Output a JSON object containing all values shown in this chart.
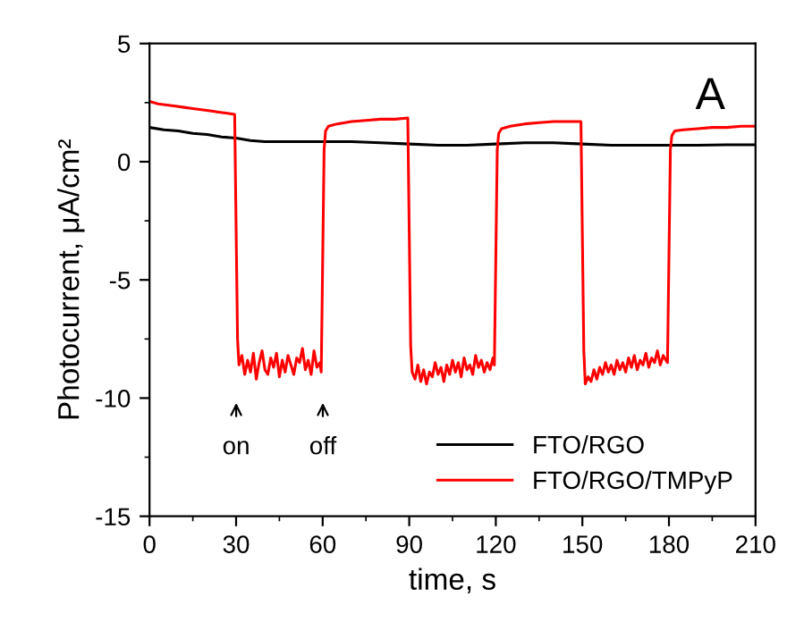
{
  "chart_data": {
    "type": "line",
    "xlabel": "time, s",
    "ylabel": "Photocurrent, μA/cm²",
    "xlim": [
      0,
      210
    ],
    "xticks": [
      0,
      30,
      60,
      90,
      120,
      150,
      180,
      210
    ],
    "ylim": [
      -15,
      5
    ],
    "yticks": [
      -15,
      -10,
      -5,
      0,
      5
    ],
    "grid": false,
    "legend": "bottom right",
    "marker": "none",
    "line_style": "solid",
    "annotations": [
      "A",
      "on",
      "off"
    ],
    "series": [
      {
        "name": "FTO/RGO",
        "color": "#000000",
        "x": [
          0,
          5,
          10,
          15,
          20,
          25,
          30,
          35,
          40,
          50,
          60,
          70,
          80,
          90,
          100,
          110,
          120,
          130,
          140,
          150,
          160,
          170,
          180,
          190,
          200,
          210
        ],
        "values": [
          1.45,
          1.35,
          1.3,
          1.2,
          1.15,
          1.05,
          1.0,
          0.9,
          0.85,
          0.85,
          0.85,
          0.85,
          0.8,
          0.75,
          0.7,
          0.7,
          0.75,
          0.8,
          0.8,
          0.75,
          0.7,
          0.7,
          0.7,
          0.7,
          0.72,
          0.72
        ]
      },
      {
        "name": "FTO/RGO/TMPyP",
        "color": "#ff0000",
        "x": [
          0,
          3,
          6,
          9,
          12,
          15,
          18,
          21,
          24,
          27,
          29.5,
          30.5,
          31,
          32,
          33,
          34,
          35,
          36,
          37,
          38,
          39,
          40,
          41,
          42,
          43,
          44,
          45,
          46,
          47,
          48,
          49,
          50,
          51,
          52,
          53,
          54,
          55,
          56,
          57,
          58,
          59,
          59.5,
          60.5,
          61,
          62,
          65,
          70,
          75,
          80,
          85,
          89.5,
          90.5,
          91,
          92,
          93,
          94,
          95,
          96,
          97,
          98,
          99,
          100,
          101,
          102,
          103,
          104,
          105,
          106,
          107,
          108,
          109,
          110,
          111,
          112,
          113,
          114,
          115,
          116,
          117,
          118,
          119,
          119.5,
          120.5,
          121,
          122,
          125,
          130,
          135,
          140,
          145,
          149.5,
          150.5,
          151,
          152,
          153,
          154,
          155,
          156,
          157,
          158,
          159,
          160,
          161,
          162,
          163,
          164,
          165,
          166,
          167,
          168,
          169,
          170,
          171,
          172,
          173,
          174,
          175,
          176,
          177,
          178,
          179,
          179.5,
          180.5,
          181,
          182,
          185,
          190,
          195,
          200,
          205,
          210
        ],
        "values": [
          2.55,
          2.45,
          2.4,
          2.35,
          2.3,
          2.25,
          2.2,
          2.15,
          2.1,
          2.05,
          2.0,
          -7.5,
          -8.6,
          -8.2,
          -9.0,
          -8.4,
          -8.9,
          -8.1,
          -9.2,
          -8.5,
          -8.0,
          -8.8,
          -9.0,
          -8.3,
          -8.7,
          -8.1,
          -9.1,
          -8.4,
          -8.9,
          -8.2,
          -8.6,
          -9.0,
          -8.3,
          -8.5,
          -7.9,
          -8.8,
          -8.4,
          -9.0,
          -8.0,
          -8.7,
          -8.5,
          -8.9,
          0.5,
          1.3,
          1.5,
          1.6,
          1.7,
          1.75,
          1.8,
          1.8,
          1.85,
          -7.8,
          -8.9,
          -9.2,
          -8.6,
          -9.3,
          -8.8,
          -9.4,
          -8.9,
          -9.1,
          -8.5,
          -9.0,
          -8.7,
          -9.3,
          -8.6,
          -9.0,
          -8.4,
          -8.9,
          -8.5,
          -9.1,
          -8.3,
          -8.8,
          -8.6,
          -9.0,
          -8.2,
          -8.7,
          -8.4,
          -8.9,
          -8.5,
          -8.8,
          -8.3,
          -8.6,
          0.5,
          1.2,
          1.4,
          1.5,
          1.6,
          1.65,
          1.7,
          1.7,
          1.7,
          -8.0,
          -9.4,
          -9.1,
          -9.3,
          -8.8,
          -9.2,
          -8.7,
          -9.0,
          -8.5,
          -8.9,
          -8.6,
          -9.0,
          -8.4,
          -8.8,
          -8.5,
          -8.9,
          -8.3,
          -8.7,
          -8.2,
          -8.8,
          -8.4,
          -8.6,
          -8.1,
          -8.7,
          -8.3,
          -8.5,
          -8.0,
          -8.6,
          -8.2,
          -8.4,
          -8.5,
          0.5,
          1.1,
          1.3,
          1.35,
          1.4,
          1.45,
          1.45,
          1.5,
          1.5
        ]
      }
    ]
  }
}
